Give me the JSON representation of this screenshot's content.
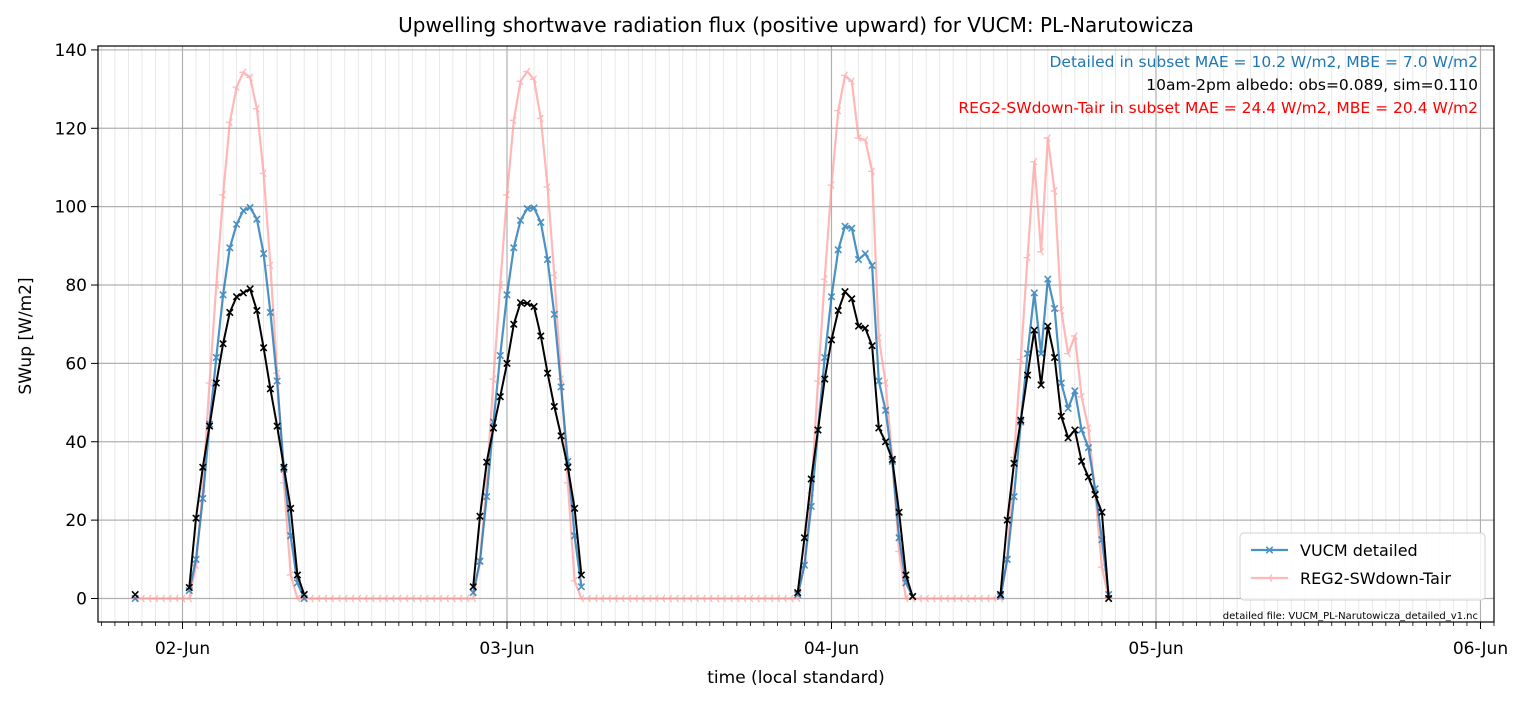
{
  "chart_data": {
    "type": "line",
    "title": "Upwelling shortwave radiation flux (positive upward) for VUCM: PL-Narutowicza",
    "xlabel": "time (local standard)",
    "ylabel": "SWup [W/m2]",
    "xlim": [
      "2024-06-01T17:45",
      "2024-06-06T01:00"
    ],
    "ylim": [
      -6,
      141
    ],
    "yticks": [
      0,
      20,
      40,
      60,
      80,
      100,
      120,
      140
    ],
    "xticks": [
      {
        "t": "2024-06-02T00:00",
        "label": "02-Jun"
      },
      {
        "t": "2024-06-03T00:00",
        "label": "03-Jun"
      },
      {
        "t": "2024-06-04T00:00",
        "label": "04-Jun"
      },
      {
        "t": "2024-06-05T00:00",
        "label": "05-Jun"
      },
      {
        "t": "2024-06-06T00:00",
        "label": "06-Jun"
      }
    ],
    "grid": true,
    "legend_position": "lower right",
    "annotations": [
      {
        "text": "Detailed in subset MAE = 10.2 W/m2, MBE = 7.0 W/m2",
        "color": "#1f77b4"
      },
      {
        "text": "10am-2pm albedo: obs=0.089, sim=0.110",
        "color": "#000000"
      },
      {
        "text": "REG2-SWdown-Tair in subset MAE = 24.4 W/m2, MBE = 20.4 W/m2",
        "color": "#ff0000"
      }
    ],
    "footnote": "detailed file: VUCM_PL-Narutowicza_detailed_v1.nc",
    "series": [
      {
        "name": "VUCM detailed",
        "color": "#1f77b4",
        "start": "2024-06-01T20:30",
        "step_minutes": 30,
        "values": [
          0,
          null,
          null,
          null,
          null,
          null,
          null,
          null,
          2,
          10,
          25.5,
          44.5,
          61.5,
          77.5,
          89.5,
          95.5,
          99,
          99.8,
          96.8,
          88,
          73,
          55.5,
          33,
          16,
          4,
          0,
          null,
          null,
          null,
          null,
          null,
          null,
          null,
          null,
          null,
          null,
          null,
          null,
          null,
          null,
          null,
          null,
          null,
          null,
          null,
          null,
          null,
          null,
          null,
          null,
          1.5,
          9.5,
          26,
          45,
          62,
          77.5,
          89.5,
          96.5,
          99.5,
          99.7,
          96,
          86.5,
          72.5,
          54,
          35,
          16,
          3,
          null,
          null,
          null,
          null,
          null,
          null,
          null,
          null,
          null,
          null,
          null,
          null,
          null,
          null,
          null,
          null,
          null,
          null,
          null,
          null,
          null,
          null,
          null,
          null,
          null,
          null,
          null,
          null,
          null,
          null,
          null,
          1,
          8.5,
          23.5,
          43,
          61.5,
          77,
          89,
          95,
          94.5,
          86.5,
          88,
          85,
          55.5,
          48,
          35,
          15.5,
          4,
          0.5,
          null,
          null,
          null,
          null,
          null,
          null,
          null,
          null,
          null,
          null,
          null,
          null,
          0.5,
          10,
          26,
          45,
          62.5,
          78,
          62.5,
          81.5,
          74,
          55,
          48.5,
          53,
          43,
          38.5,
          28,
          15,
          1
        ]
      },
      {
        "name": "REG2-SWdown-Tair",
        "color": "#ff9a9a",
        "start": "2024-06-01T20:30",
        "step_minutes": 30,
        "values": [
          0,
          0,
          0,
          0,
          0,
          0,
          0,
          0,
          0,
          8.5,
          28,
          55,
          80,
          103,
          121.5,
          130.5,
          134.3,
          133,
          125,
          108.5,
          85,
          57.5,
          29.5,
          6,
          0,
          0,
          0,
          0,
          0,
          0,
          0,
          0,
          0,
          0,
          0,
          0,
          0,
          0,
          0,
          0,
          0,
          0,
          0,
          0,
          0,
          0,
          0,
          0,
          0,
          0,
          0,
          9.5,
          30,
          56,
          80,
          103,
          122,
          132,
          134.5,
          132.5,
          122.5,
          105,
          82.5,
          56,
          29.5,
          4.5,
          0,
          0,
          0,
          0,
          0,
          0,
          0,
          0,
          0,
          0,
          0,
          0,
          0,
          0,
          0,
          0,
          0,
          0,
          0,
          0,
          0,
          0,
          0,
          0,
          0,
          0,
          0,
          0,
          0,
          0,
          0,
          0,
          0,
          9,
          27,
          55.5,
          81.5,
          105.5,
          124.5,
          133.5,
          132,
          117.5,
          117,
          109,
          66.5,
          55,
          35.5,
          12,
          0,
          0,
          0,
          0,
          0,
          0,
          0,
          0,
          0,
          0,
          0,
          0,
          0,
          0,
          0,
          10,
          36,
          61,
          87,
          111.5,
          88.5,
          117.5,
          104,
          73.5,
          62.5,
          67,
          51.5,
          43.5,
          27,
          8,
          0
        ]
      },
      {
        "name": "",
        "color": "#000000",
        "start": "2024-06-01T20:30",
        "step_minutes": 30,
        "values": [
          1,
          null,
          null,
          null,
          null,
          null,
          null,
          null,
          2.8,
          20.5,
          33.5,
          44,
          55,
          65,
          73,
          77,
          78,
          79,
          73.5,
          64,
          53.5,
          44,
          33.5,
          23,
          6,
          1,
          null,
          null,
          null,
          null,
          null,
          null,
          null,
          null,
          null,
          null,
          null,
          null,
          null,
          null,
          null,
          null,
          null,
          null,
          null,
          null,
          null,
          null,
          null,
          null,
          3,
          21,
          34.8,
          43.5,
          51.5,
          60,
          70,
          75.5,
          75.3,
          74.5,
          67,
          57.5,
          49,
          41.5,
          33.5,
          23,
          6,
          null,
          null,
          null,
          null,
          null,
          null,
          null,
          null,
          null,
          null,
          null,
          null,
          null,
          null,
          null,
          null,
          null,
          null,
          null,
          null,
          null,
          null,
          null,
          null,
          null,
          null,
          null,
          null,
          null,
          null,
          null,
          1.5,
          15.5,
          30.5,
          43,
          56,
          66,
          73.5,
          78.3,
          76.5,
          69.5,
          69,
          64.5,
          43.5,
          40,
          35.5,
          22,
          6,
          0.5,
          null,
          null,
          null,
          null,
          null,
          null,
          null,
          null,
          null,
          null,
          null,
          null,
          1,
          20,
          34.5,
          45.5,
          57,
          68.5,
          54.5,
          69.5,
          61.5,
          46.5,
          41,
          43,
          35,
          31,
          26.5,
          22,
          0
        ]
      }
    ]
  }
}
